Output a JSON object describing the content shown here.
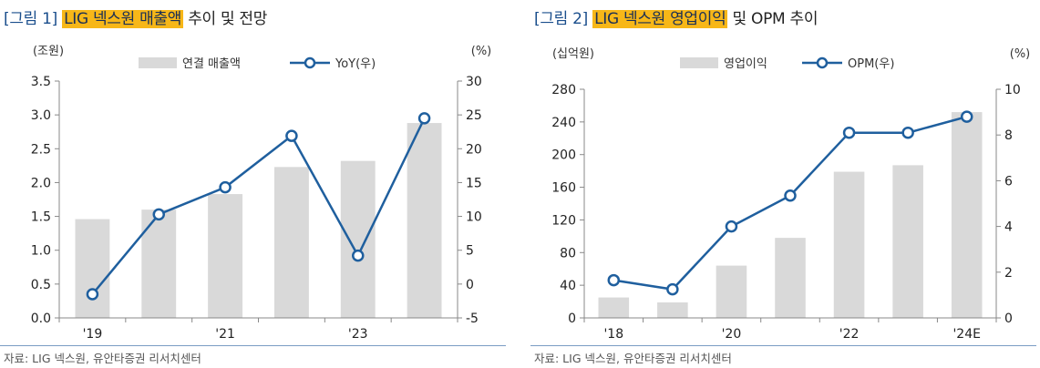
{
  "colors": {
    "bar": "#d9d9d9",
    "line": "#1f5f9e",
    "marker_fill": "#ffffff",
    "title_highlight": "#f7b718",
    "title_label": "#1a4e8c"
  },
  "panels": {
    "left": {
      "fig_label": "[그림 1]",
      "title_highlight": "LIG 넥스원 매출액",
      "title_rest": " 추이 및 전망",
      "source": "자료: LIG 넥스원, 유안타증권 리서치센터"
    },
    "right": {
      "fig_label": "[그림 2]",
      "title_highlight": "LIG 넥스원 영업이익",
      "title_rest": " 및 OPM 추이",
      "source": "자료: LIG 넥스원, 유안타증권 리서치센터"
    }
  },
  "chart_data": [
    {
      "type": "bar",
      "title": "LIG 넥스원 매출액 추이 및 전망",
      "categories": [
        "2019",
        "2020",
        "2021",
        "2022",
        "2023",
        "2024"
      ],
      "x_tick_labels": [
        "'19",
        "",
        "'21",
        "",
        "'23",
        ""
      ],
      "ylabel_left": "(조원)",
      "ylabel_right": "(%)",
      "ylim_left": [
        0,
        3.5
      ],
      "yticks_left": [
        0,
        0.5,
        1.0,
        1.5,
        2.0,
        2.5,
        3.0,
        3.5
      ],
      "yticks_left_labels": [
        "0.0",
        "0.5",
        "1.0",
        "1.5",
        "2.0",
        "2.5",
        "3.0",
        "3.5"
      ],
      "ylim_right": [
        -5,
        30
      ],
      "yticks_right": [
        -5,
        0,
        5,
        10,
        15,
        20,
        25,
        30
      ],
      "yticks_right_labels": [
        "-5",
        "0",
        "5",
        "10",
        "15",
        "20",
        "25",
        "30"
      ],
      "series": [
        {
          "name": "연결 매출액",
          "kind": "bar",
          "axis": "left",
          "values": [
            1.46,
            1.6,
            1.83,
            2.23,
            2.32,
            2.88
          ]
        },
        {
          "name": "YoY(우)",
          "kind": "line",
          "axis": "right",
          "values": [
            -1.5,
            10.3,
            14.3,
            21.9,
            4.2,
            24.5
          ]
        }
      ]
    },
    {
      "type": "bar",
      "title": "LIG 넥스원 영업이익 및 OPM 추이",
      "categories": [
        "2018",
        "2019",
        "2020",
        "2021",
        "2022",
        "2023",
        "2024E"
      ],
      "x_tick_labels": [
        "'18",
        "",
        "'20",
        "",
        "'22",
        "",
        "'24E"
      ],
      "ylabel_left": "(십억원)",
      "ylabel_right": "(%)",
      "ylim_left": [
        0,
        280
      ],
      "yticks_left": [
        0,
        40,
        80,
        120,
        160,
        200,
        240,
        280
      ],
      "yticks_left_labels": [
        "0",
        "40",
        "80",
        "120",
        "160",
        "200",
        "240",
        "280"
      ],
      "ylim_right": [
        0,
        10
      ],
      "yticks_right": [
        0,
        2,
        4,
        6,
        8,
        10
      ],
      "yticks_right_labels": [
        "0",
        "2",
        "4",
        "6",
        "8",
        "10"
      ],
      "series": [
        {
          "name": "영업이익",
          "kind": "bar",
          "axis": "left",
          "values": [
            25,
            19,
            64,
            98,
            179,
            187,
            252
          ]
        },
        {
          "name": "OPM(우)",
          "kind": "line",
          "axis": "right",
          "values": [
            1.65,
            1.25,
            4.0,
            5.35,
            8.1,
            8.1,
            8.8
          ]
        }
      ]
    }
  ]
}
